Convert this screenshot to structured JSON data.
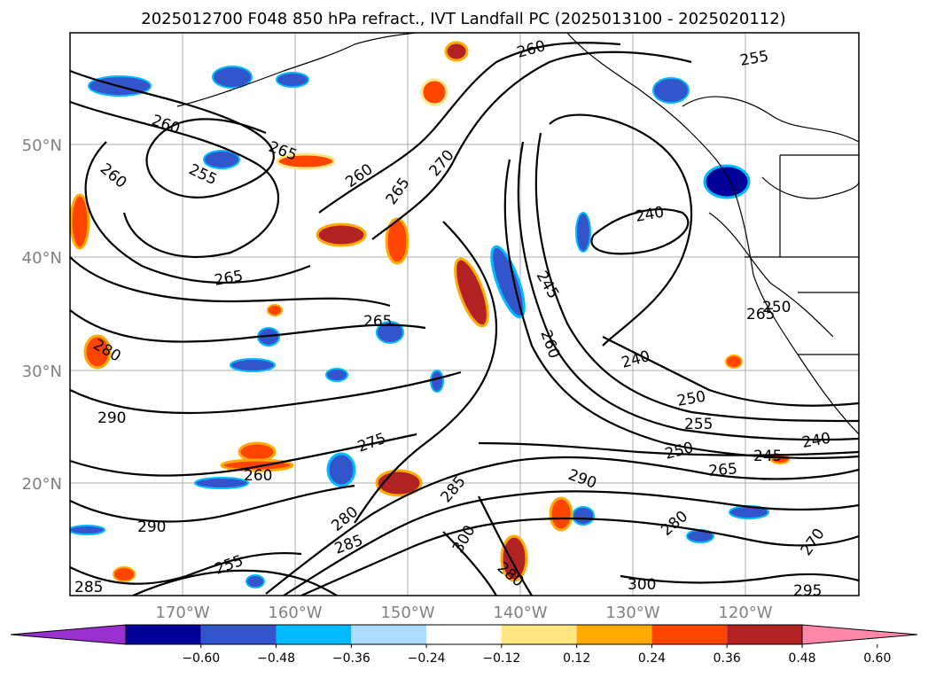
{
  "title": "2025012700 F048 850 hPa refract., IVT Landfall PC (2025013100 - 2025020112)",
  "lat_labels": [
    "50°N",
    "40°N",
    "30°N",
    "20°N"
  ],
  "lon_labels": [
    "170°W",
    "160°W",
    "150°W",
    "140°W",
    "130°W",
    "120°W"
  ],
  "colorbar": {
    "ticks": [
      "−0.60",
      "−0.48",
      "−0.36",
      "−0.24",
      "−0.12",
      "0.12",
      "0.24",
      "0.36",
      "0.48",
      "0.60"
    ],
    "colors": [
      "#9b30d0",
      "#000099",
      "#3355cc",
      "#00bbff",
      "#aaddff",
      "#ffffff",
      "#ffe680",
      "#ffaa00",
      "#ff4400",
      "#b22222",
      "#ff88aa"
    ]
  },
  "contour_labels": [
    "260",
    "255",
    "265",
    "260",
    "255",
    "260",
    "265",
    "270",
    "240",
    "245",
    "260",
    "240",
    "250",
    "255",
    "250",
    "265",
    "245",
    "240",
    "290",
    "275",
    "285",
    "300",
    "280",
    "290",
    "280",
    "270",
    "300",
    "295",
    "265",
    "260",
    "280",
    "285",
    "265",
    "290",
    "255",
    "285",
    "265",
    "280",
    "250",
    "260"
  ]
}
